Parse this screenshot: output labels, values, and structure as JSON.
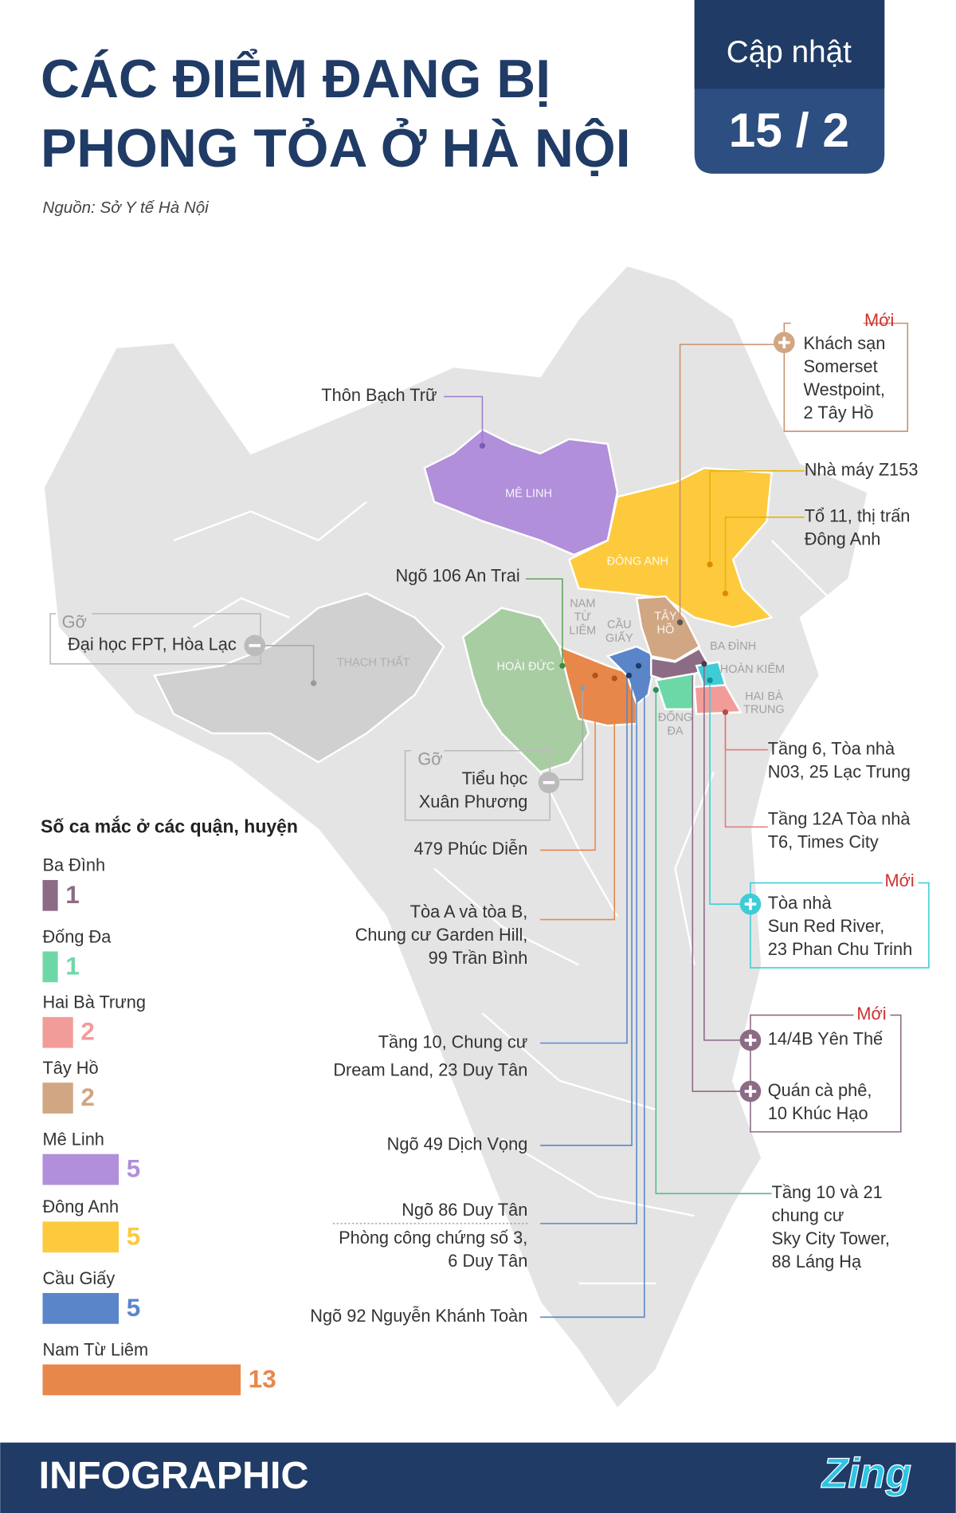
{
  "header": {
    "title": [
      "CÁC ĐIỂM ĐANG BỊ",
      "PHONG TỎA Ở HÀ NỘI"
    ],
    "source": "Nguồn: Sở Y tế Hà Nội"
  },
  "badge": {
    "label": "Cập nhật",
    "date": "15 / 2"
  },
  "map": {
    "districts": [
      {
        "lines": [
          "MÊ LINH"
        ]
      },
      {
        "lines": [
          "ĐÔNG ANH"
        ]
      },
      {
        "lines": [
          "THẠCH THẤT"
        ]
      },
      {
        "lines": [
          "HOÀI ĐỨC"
        ]
      },
      {
        "lines": [
          "NAM",
          "TỪ",
          "LIÊM"
        ]
      },
      {
        "lines": [
          "CẦU",
          "GIẤY"
        ]
      },
      {
        "lines": [
          "TÂY",
          "HỒ"
        ]
      },
      {
        "lines": [
          "BA ĐÌNH"
        ]
      },
      {
        "lines": [
          "HOÀN KIẾM"
        ]
      },
      {
        "lines": [
          "HAI BÀ",
          "TRUNG"
        ]
      },
      {
        "lines": [
          "ĐỐNG",
          "ĐA"
        ]
      }
    ],
    "annotations": [
      {
        "tag": "Mới",
        "lines": [
          "Khách sạn",
          "Somerset",
          "Westpoint,",
          "2 Tây Hồ"
        ]
      },
      {
        "lines": [
          "Nhà máy Z153"
        ]
      },
      {
        "lines": [
          "Tổ 11, thị trấn",
          "Đông Anh"
        ]
      },
      {
        "lines": [
          "Thôn Bạch Trữ"
        ]
      },
      {
        "lines": [
          "Ngõ 106 An Trai"
        ]
      },
      {
        "tag": "Gỡ",
        "lines": [
          "Đại học FPT, Hòa Lạc"
        ]
      },
      {
        "tag": "Gỡ",
        "lines": [
          "Tiểu học",
          "Xuân Phương"
        ]
      },
      {
        "lines": [
          "479 Phúc Diễn"
        ]
      },
      {
        "lines": [
          "Tòa A và tòa B,",
          "Chung cư Garden Hill,",
          "99 Trần Bình"
        ]
      },
      {
        "lines": [
          "Tầng 10, Chung cư",
          "Dream Land, 23 Duy Tân"
        ]
      },
      {
        "lines": [
          "Ngõ 49 Dịch Vọng"
        ]
      },
      {
        "lines": [
          "Ngõ 86 Duy Tân"
        ]
      },
      {
        "lines": [
          "Phòng công chứng số 3,",
          "6 Duy Tân"
        ]
      },
      {
        "lines": [
          "Ngõ 92 Nguyễn Khánh Toàn"
        ]
      },
      {
        "lines": [
          "Tầng 6, Tòa nhà",
          "N03, 25 Lạc Trung"
        ]
      },
      {
        "lines": [
          "Tầng 12A Tòa nhà",
          "T6, Times City"
        ]
      },
      {
        "tag": "Mới",
        "lines": [
          "Tòa nhà",
          "Sun Red River,",
          "23 Phan Chu Trinh"
        ]
      },
      {
        "tag": "Mới",
        "lines": [
          "14/4B Yên Thế"
        ]
      },
      {
        "lines": [
          "Quán cà phê,",
          "10 Khúc Hạo"
        ]
      },
      {
        "lines": [
          "Tầng 10 và 21",
          "chung cư",
          "Sky City Tower,",
          "88 Láng Hạ"
        ]
      }
    ]
  },
  "chart_data": {
    "type": "bar",
    "title": "Số ca mắc ở các quận, huyện",
    "categories": [
      "Ba Đình",
      "Đống Đa",
      "Hai Bà Trưng",
      "Tây Hồ",
      "Mê Linh",
      "Đông Anh",
      "Cầu Giấy",
      "Nam Từ Liêm"
    ],
    "values": [
      1,
      1,
      2,
      2,
      5,
      5,
      5,
      13
    ],
    "colors": [
      "#8c6b85",
      "#6dd8a7",
      "#f29c9a",
      "#d1a683",
      "#b18fda",
      "#fcca3c",
      "#5a86c9",
      "#e8874a"
    ]
  },
  "footer": {
    "brand": "INFOGRAPHIC",
    "logo": "Zing"
  }
}
